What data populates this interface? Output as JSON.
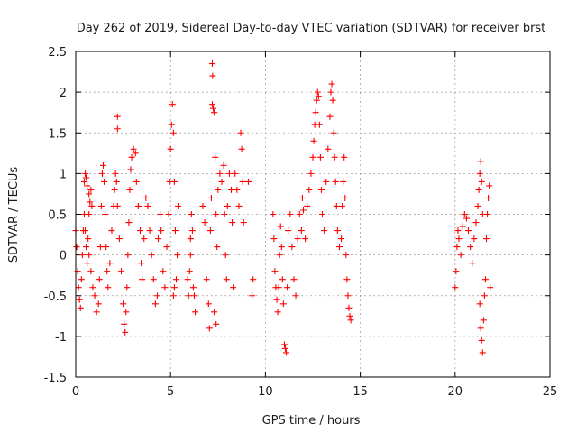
{
  "chart_data": {
    "type": "scatter",
    "title": "Day 262 of 2019, Sidereal Day-to-day VTEC variation (SDTVAR) for receiver brst",
    "xlabel": "GPS time / hours",
    "ylabel": "SDTVAR / TECUs",
    "xlim": [
      0,
      25
    ],
    "ylim": [
      -1.5,
      2.5
    ],
    "xticks": [
      0,
      5,
      10,
      15,
      20,
      25
    ],
    "yticks": [
      -1.5,
      -1,
      -0.5,
      0,
      0.5,
      1,
      1.5,
      2,
      2.5
    ],
    "xtick_labels": [
      "0",
      "5",
      "10",
      "15",
      "20",
      "25"
    ],
    "ytick_labels": [
      "-1.5",
      "-1",
      "-0.5",
      "0",
      "0.5",
      "1",
      "1.5",
      "2",
      "2.5"
    ],
    "grid": true,
    "marker": "+",
    "color": "#ff0000",
    "series": [
      {
        "name": "SDTVAR",
        "points": [
          [
            0.0,
            0.3
          ],
          [
            0.05,
            0.1
          ],
          [
            0.1,
            -0.2
          ],
          [
            0.15,
            -0.4
          ],
          [
            0.2,
            -0.55
          ],
          [
            0.25,
            -0.65
          ],
          [
            0.3,
            -0.3
          ],
          [
            0.35,
            0.0
          ],
          [
            0.4,
            0.3
          ],
          [
            0.45,
            0.5
          ],
          [
            0.5,
            0.3
          ],
          [
            0.55,
            0.1
          ],
          [
            0.6,
            -0.1
          ],
          [
            0.65,
            0.2
          ],
          [
            0.7,
            0.5
          ],
          [
            0.45,
            0.9
          ],
          [
            0.5,
            1.0
          ],
          [
            0.55,
            0.95
          ],
          [
            0.6,
            0.85
          ],
          [
            0.7,
            0.75
          ],
          [
            0.75,
            0.65
          ],
          [
            0.8,
            0.8
          ],
          [
            0.85,
            0.6
          ],
          [
            0.7,
            0.0
          ],
          [
            0.8,
            -0.2
          ],
          [
            0.9,
            -0.4
          ],
          [
            1.0,
            -0.5
          ],
          [
            1.1,
            -0.7
          ],
          [
            1.2,
            -0.6
          ],
          [
            1.25,
            -0.3
          ],
          [
            1.3,
            0.1
          ],
          [
            1.35,
            0.6
          ],
          [
            1.4,
            1.0
          ],
          [
            1.45,
            1.1
          ],
          [
            1.5,
            0.9
          ],
          [
            1.55,
            0.5
          ],
          [
            1.6,
            0.1
          ],
          [
            1.65,
            -0.2
          ],
          [
            1.7,
            -0.4
          ],
          [
            1.8,
            -0.1
          ],
          [
            1.9,
            0.3
          ],
          [
            2.0,
            0.6
          ],
          [
            2.05,
            0.8
          ],
          [
            2.1,
            1.0
          ],
          [
            2.15,
            0.9
          ],
          [
            2.2,
            0.6
          ],
          [
            2.2,
            1.7
          ],
          [
            2.2,
            1.55
          ],
          [
            2.3,
            0.2
          ],
          [
            2.4,
            -0.2
          ],
          [
            2.5,
            -0.6
          ],
          [
            2.55,
            -0.85
          ],
          [
            2.6,
            -0.95
          ],
          [
            2.65,
            -0.7
          ],
          [
            2.7,
            -0.4
          ],
          [
            2.75,
            0.0
          ],
          [
            2.8,
            0.4
          ],
          [
            2.85,
            0.8
          ],
          [
            2.9,
            1.05
          ],
          [
            2.95,
            1.2
          ],
          [
            3.05,
            1.3
          ],
          [
            3.15,
            1.25
          ],
          [
            3.2,
            0.9
          ],
          [
            3.3,
            0.6
          ],
          [
            3.4,
            0.3
          ],
          [
            3.45,
            -0.1
          ],
          [
            3.5,
            -0.3
          ],
          [
            3.6,
            0.2
          ],
          [
            3.7,
            0.7
          ],
          [
            3.8,
            0.6
          ],
          [
            3.9,
            0.3
          ],
          [
            4.0,
            0.0
          ],
          [
            4.1,
            -0.3
          ],
          [
            4.2,
            -0.6
          ],
          [
            4.3,
            -0.5
          ],
          [
            4.35,
            0.2
          ],
          [
            4.45,
            0.5
          ],
          [
            4.5,
            0.3
          ],
          [
            4.6,
            -0.2
          ],
          [
            4.7,
            -0.4
          ],
          [
            4.8,
            0.1
          ],
          [
            4.9,
            0.5
          ],
          [
            4.95,
            0.9
          ],
          [
            5.0,
            1.3
          ],
          [
            5.05,
            1.6
          ],
          [
            5.1,
            1.85
          ],
          [
            5.15,
            1.5
          ],
          [
            5.2,
            0.9
          ],
          [
            5.25,
            0.3
          ],
          [
            5.3,
            -0.3
          ],
          [
            5.35,
            0.0
          ],
          [
            5.4,
            0.6
          ],
          [
            5.2,
            -0.4
          ],
          [
            5.15,
            -0.5
          ],
          [
            5.9,
            -0.3
          ],
          [
            5.95,
            -0.5
          ],
          [
            6.0,
            -0.2
          ],
          [
            6.05,
            0.2
          ],
          [
            6.1,
            0.5
          ],
          [
            6.15,
            0.3
          ],
          [
            6.2,
            -0.4
          ],
          [
            6.25,
            -0.5
          ],
          [
            6.3,
            -0.7
          ],
          [
            6.05,
            0.0
          ],
          [
            6.7,
            0.6
          ],
          [
            6.8,
            0.4
          ],
          [
            6.9,
            -0.3
          ],
          [
            7.0,
            -0.6
          ],
          [
            7.05,
            -0.9
          ],
          [
            7.1,
            0.3
          ],
          [
            7.15,
            0.7
          ],
          [
            7.2,
            2.35
          ],
          [
            7.22,
            2.2
          ],
          [
            7.25,
            1.8
          ],
          [
            7.3,
            1.75
          ],
          [
            7.2,
            1.85
          ],
          [
            7.35,
            1.2
          ],
          [
            7.4,
            0.5
          ],
          [
            7.45,
            0.1
          ],
          [
            7.5,
            0.8
          ],
          [
            7.6,
            1.0
          ],
          [
            7.7,
            0.9
          ],
          [
            7.8,
            1.1
          ],
          [
            7.85,
            0.5
          ],
          [
            7.9,
            0.0
          ],
          [
            7.95,
            -0.3
          ],
          [
            8.0,
            0.6
          ],
          [
            8.1,
            1.0
          ],
          [
            8.2,
            0.8
          ],
          [
            8.25,
            0.4
          ],
          [
            8.4,
            1.0
          ],
          [
            8.5,
            0.8
          ],
          [
            8.6,
            0.6
          ],
          [
            8.7,
            1.5
          ],
          [
            8.75,
            1.3
          ],
          [
            8.8,
            0.9
          ],
          [
            8.85,
            0.4
          ],
          [
            7.3,
            -0.7
          ],
          [
            7.4,
            -0.85
          ],
          [
            8.3,
            -0.4
          ],
          [
            9.1,
            0.9
          ],
          [
            9.3,
            -0.5
          ],
          [
            9.35,
            -0.3
          ],
          [
            10.4,
            0.5
          ],
          [
            10.45,
            0.2
          ],
          [
            10.5,
            -0.2
          ],
          [
            10.55,
            -0.4
          ],
          [
            10.6,
            -0.55
          ],
          [
            10.65,
            -0.7
          ],
          [
            10.7,
            -0.4
          ],
          [
            10.75,
            0.0
          ],
          [
            10.8,
            0.35
          ],
          [
            10.85,
            0.1
          ],
          [
            10.9,
            -0.3
          ],
          [
            10.95,
            -0.6
          ],
          [
            11.0,
            -1.1
          ],
          [
            11.05,
            -1.15
          ],
          [
            11.1,
            -1.2
          ],
          [
            11.15,
            -0.4
          ],
          [
            11.2,
            0.3
          ],
          [
            11.3,
            0.5
          ],
          [
            11.4,
            0.1
          ],
          [
            11.5,
            -0.3
          ],
          [
            11.6,
            -0.5
          ],
          [
            11.7,
            0.2
          ],
          [
            11.8,
            0.5
          ],
          [
            11.9,
            0.3
          ],
          [
            11.95,
            0.7
          ],
          [
            12.0,
            0.55
          ],
          [
            12.1,
            0.2
          ],
          [
            12.2,
            0.6
          ],
          [
            12.3,
            0.8
          ],
          [
            12.4,
            1.0
          ],
          [
            12.5,
            1.2
          ],
          [
            12.55,
            1.4
          ],
          [
            12.6,
            1.6
          ],
          [
            12.65,
            1.75
          ],
          [
            12.7,
            1.9
          ],
          [
            12.75,
            2.0
          ],
          [
            12.8,
            1.95
          ],
          [
            12.85,
            1.6
          ],
          [
            12.9,
            1.2
          ],
          [
            12.95,
            0.8
          ],
          [
            13.0,
            0.5
          ],
          [
            13.1,
            0.3
          ],
          [
            13.2,
            0.9
          ],
          [
            13.3,
            1.3
          ],
          [
            13.4,
            1.7
          ],
          [
            13.45,
            2.0
          ],
          [
            13.5,
            2.1
          ],
          [
            13.55,
            1.9
          ],
          [
            13.6,
            1.5
          ],
          [
            13.65,
            1.2
          ],
          [
            13.7,
            0.9
          ],
          [
            13.75,
            0.6
          ],
          [
            13.8,
            0.3
          ],
          [
            13.9,
            0.1
          ],
          [
            14.0,
            0.2
          ],
          [
            14.05,
            0.6
          ],
          [
            14.1,
            0.9
          ],
          [
            14.15,
            1.2
          ],
          [
            14.2,
            0.7
          ],
          [
            14.25,
            0.0
          ],
          [
            14.3,
            -0.3
          ],
          [
            14.35,
            -0.5
          ],
          [
            14.4,
            -0.65
          ],
          [
            14.45,
            -0.75
          ],
          [
            14.5,
            -0.8
          ],
          [
            20.0,
            -0.4
          ],
          [
            20.05,
            -0.2
          ],
          [
            20.1,
            0.1
          ],
          [
            20.15,
            0.3
          ],
          [
            20.2,
            0.2
          ],
          [
            20.3,
            0.0
          ],
          [
            20.4,
            0.35
          ],
          [
            20.5,
            0.5
          ],
          [
            20.6,
            0.45
          ],
          [
            20.7,
            0.3
          ],
          [
            20.8,
            0.1
          ],
          [
            20.9,
            -0.1
          ],
          [
            21.0,
            0.2
          ],
          [
            21.1,
            0.4
          ],
          [
            21.2,
            0.6
          ],
          [
            21.25,
            0.8
          ],
          [
            21.3,
            1.0
          ],
          [
            21.35,
            1.15
          ],
          [
            21.4,
            0.9
          ],
          [
            21.45,
            0.5
          ],
          [
            21.3,
            -0.6
          ],
          [
            21.35,
            -0.9
          ],
          [
            21.4,
            -1.05
          ],
          [
            21.45,
            -1.2
          ],
          [
            21.5,
            -0.8
          ],
          [
            21.55,
            -0.5
          ],
          [
            21.6,
            -0.3
          ],
          [
            21.65,
            0.2
          ],
          [
            21.7,
            0.5
          ],
          [
            21.75,
            0.7
          ],
          [
            21.8,
            0.85
          ],
          [
            21.85,
            -0.4
          ]
        ]
      }
    ]
  }
}
